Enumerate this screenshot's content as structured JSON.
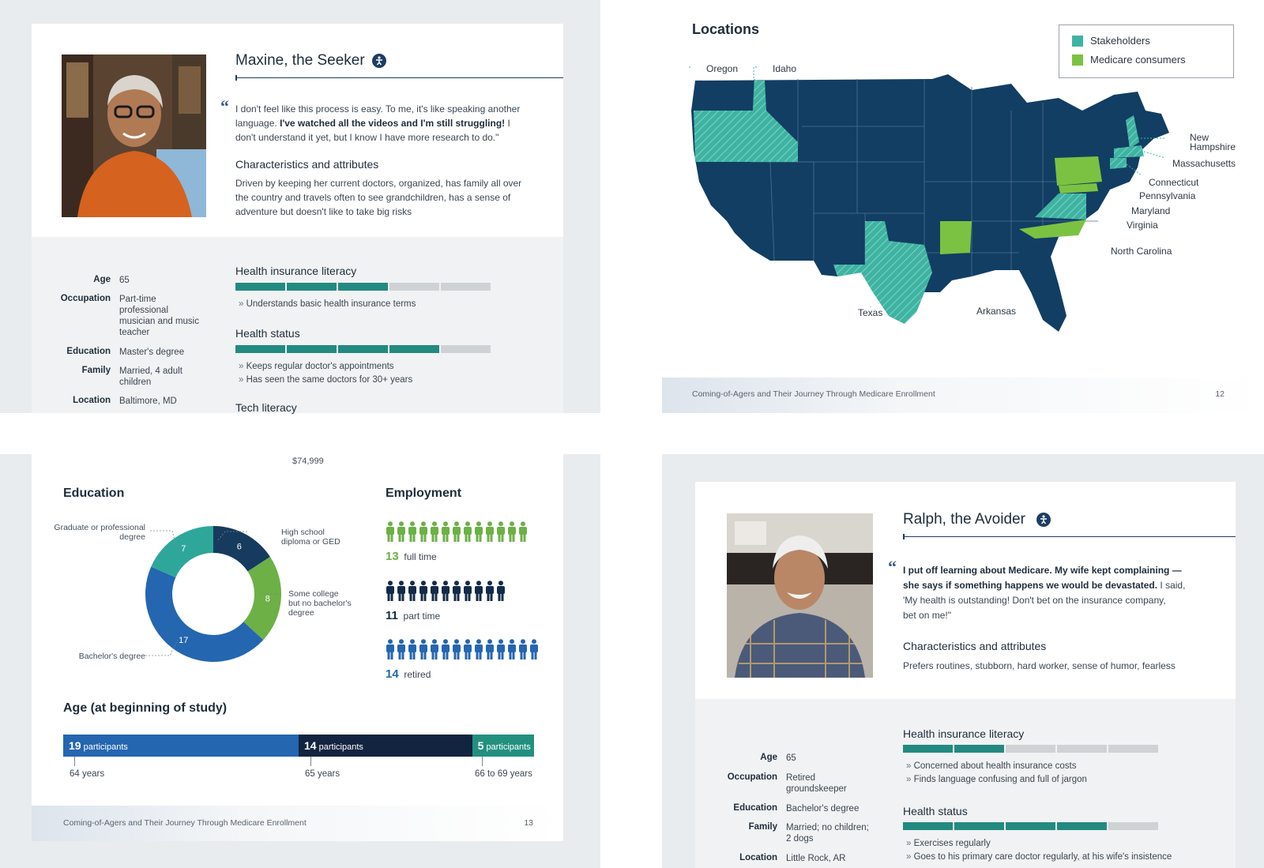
{
  "p1": {
    "name": "Maxine, the Seeker",
    "quote_a": "I don't feel like this process is easy. To me, it's like speaking another",
    "quote_b1": "language. ",
    "quote_b2": "I've watched all the videos and I'm still struggling!",
    "quote_b3": " I",
    "quote_c": "don't understand it yet, but I know I have more research to do.\"",
    "char_title": "Characteristics and attributes",
    "char_1": "Driven by keeping her current doctors, organized, has family all over",
    "char_2": "the country and travels often to see grandchildren, has a sense of",
    "char_3": "adventure but doesn't like to take big risks",
    "age_l": "Age",
    "age_v": "65",
    "occ_l": "Occupation",
    "occ_v1": "Part-time",
    "occ_v2": "professional",
    "occ_v3": "musician and music",
    "occ_v4": "teacher",
    "edu_l": "Education",
    "edu_v": "Master's degree",
    "fam_l": "Family",
    "fam_v1": "Married, 4 adult",
    "fam_v2": "children",
    "loc_l": "Location",
    "loc_v": "Baltimore, MD",
    "hil_title": "Health insurance literacy",
    "hil_level": 3,
    "hil_b1": "Understands basic health insurance terms",
    "hs_title": "Health status",
    "hs_level": 4,
    "hs_b1": "Keeps regular doctor's appointments",
    "hs_b2": "Has seen the same doctors for 30+ years",
    "tech_title": "Tech literacy"
  },
  "p2": {
    "title": "Locations",
    "legend_1": "Stakeholders",
    "legend_2": "Medicare consumers",
    "color_stakeholders": "#3fb3a2",
    "color_consumers": "#7cc242",
    "color_states": "#123e63",
    "states": {
      "oregon": "Oregon",
      "idaho": "Idaho",
      "nh1": "New",
      "nh2": "Hampshire",
      "ma": "Massachusetts",
      "ct": "Connecticut",
      "pa": "Pennsylvania",
      "md": "Maryland",
      "va": "Virginia",
      "nc": "North Carolina",
      "tx": "Texas",
      "ar": "Arkansas"
    },
    "footer": "Coming-of-Agers and Their Journey Through Medicare Enrollment",
    "page": "12"
  },
  "p3": {
    "cut_text": "$74,999",
    "edu_title": "Education",
    "edu_labels": {
      "grad1": "Graduate or professional",
      "grad2": "degree",
      "hs1": "High school",
      "hs2": "diploma or GED",
      "sc1": "Some college",
      "sc2": "but no bachelor's",
      "sc3": "degree",
      "ba": "Bachelor's degree"
    },
    "emp_title": "Employment",
    "emp_ft_n": "13",
    "emp_ft_l": "full time",
    "emp_pt_n": "11",
    "emp_pt_l": "part time",
    "emp_rt_n": "14",
    "emp_rt_l": "retired",
    "age_title": "Age (at beginning of study)",
    "age_1_n": "19",
    "age_2_n": "14",
    "age_3_n": "5",
    "participants": "participants",
    "age_1_l": "64 years",
    "age_2_l": "65 years",
    "age_3_l": "66 to 69 years",
    "footer": "Coming-of-Agers and Their Journey Through Medicare Enrollment",
    "page": "13"
  },
  "p4": {
    "name": "Ralph, the Avoider",
    "q1": "I put off learning about Medicare. My wife kept complaining —",
    "q2a": "she says if something happens we would be devastated.",
    "q2b": " I said,",
    "q3": "'My health is outstanding! Don't bet on the insurance company,",
    "q4": "bet on me!\"",
    "char_title": "Characteristics and attributes",
    "char_1": "Prefers routines, stubborn, hard worker, sense of humor, fearless",
    "age_l": "Age",
    "age_v": "65",
    "occ_l": "Occupation",
    "occ_v1": "Retired",
    "occ_v2": "groundskeeper",
    "edu_l": "Education",
    "edu_v": "Bachelor's degree",
    "fam_l": "Family",
    "fam_v1": "Married; no children;",
    "fam_v2": "2 dogs",
    "loc_l": "Location",
    "loc_v": "Little Rock, AR",
    "hil_title": "Health insurance literacy",
    "hil_level": 2,
    "hil_b1": "Concerned about health insurance costs",
    "hil_b2": "Finds language confusing and full of jargon",
    "hs_title": "Health status",
    "hs_level": 4,
    "hs_b1": "Exercises regularly",
    "hs_b2": "Goes to his primary care doctor regularly, at his wife's insistence"
  },
  "chart_data": [
    {
      "type": "pie",
      "title": "Education",
      "categories": [
        "High school diploma or GED",
        "Some college but no bachelor's degree",
        "Bachelor's degree",
        "Graduate or professional degree"
      ],
      "values": [
        6,
        8,
        17,
        7
      ],
      "colors": [
        "#163b5e",
        "#6db046",
        "#2466b0",
        "#2ea79a"
      ]
    },
    {
      "type": "bar",
      "title": "Employment",
      "categories": [
        "full time",
        "part time",
        "retired"
      ],
      "values": [
        13,
        11,
        14
      ],
      "colors": [
        "#6db046",
        "#132b4a",
        "#2466b0"
      ]
    },
    {
      "type": "bar",
      "title": "Age (at beginning of study)",
      "categories": [
        "64 years",
        "65 years",
        "66 to 69 years"
      ],
      "values": [
        19,
        14,
        5
      ],
      "colors": [
        "#2466b0",
        "#132440",
        "#23907f"
      ]
    }
  ]
}
